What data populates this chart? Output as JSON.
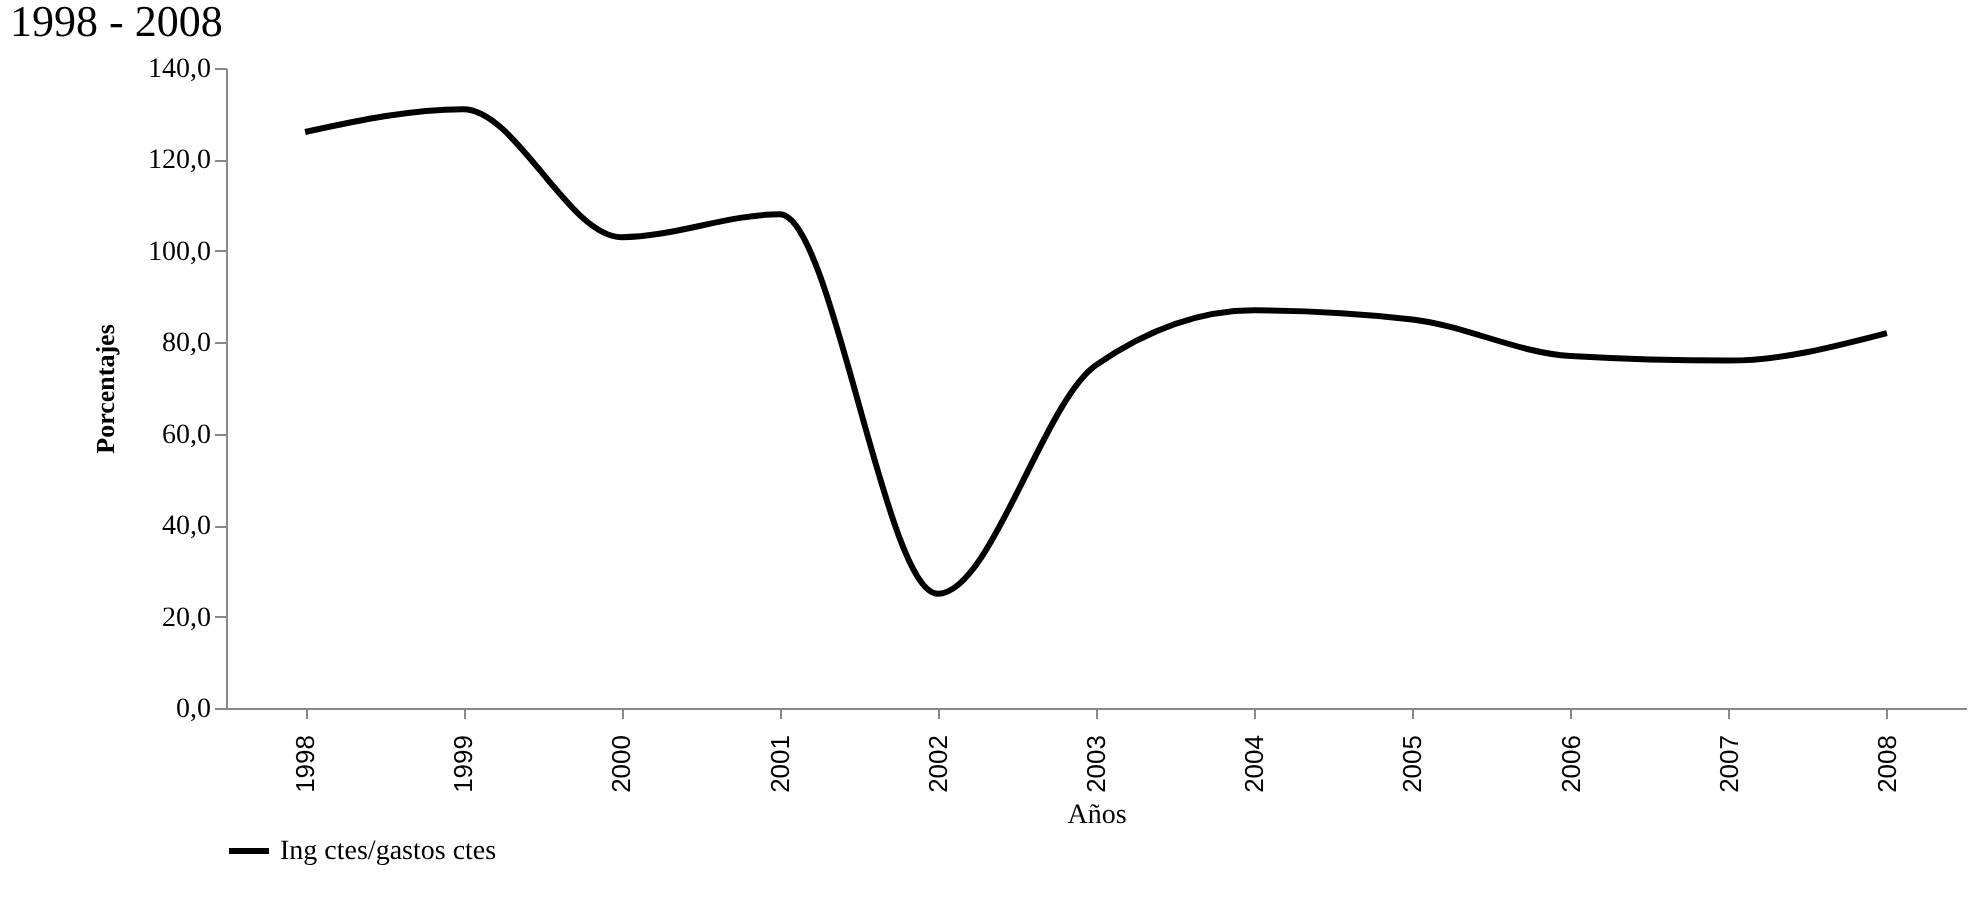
{
  "chart_data": {
    "type": "line",
    "title": "1998 - 2008",
    "xlabel": "Años",
    "ylabel": "Porcentajes",
    "categories": [
      "1998",
      "1999",
      "2000",
      "2001",
      "2002",
      "2003",
      "2004",
      "2005",
      "2006",
      "2007",
      "2008"
    ],
    "series": [
      {
        "name": "Ing ctes/gastos ctes",
        "color": "#000000",
        "values": [
          126,
          131,
          103,
          108,
          25,
          75,
          87,
          85,
          77,
          76,
          82
        ]
      }
    ],
    "ylim": [
      0,
      140
    ],
    "yticks": [
      {
        "value": 0,
        "label": "0,0"
      },
      {
        "value": 20,
        "label": "20,0"
      },
      {
        "value": 40,
        "label": "40,0"
      },
      {
        "value": 60,
        "label": "60,0"
      },
      {
        "value": 80,
        "label": "80,0"
      },
      {
        "value": 100,
        "label": "100,0"
      },
      {
        "value": 120,
        "label": "120,0"
      },
      {
        "value": 140,
        "label": "140,0"
      }
    ],
    "grid": false,
    "legend": "bottom",
    "marker": "none",
    "line_style": "solid"
  }
}
